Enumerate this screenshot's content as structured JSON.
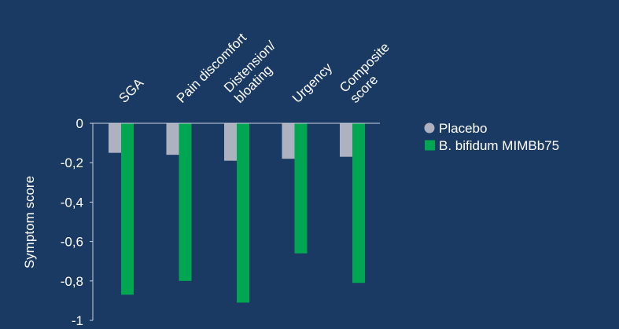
{
  "chart_data": {
    "type": "bar",
    "categories": [
      [
        "SGA"
      ],
      [
        "Pain discomfort"
      ],
      [
        "Distension/",
        "bloating"
      ],
      [
        "Urgency"
      ],
      [
        "Composite",
        "score"
      ]
    ],
    "series": [
      {
        "name": "Placebo",
        "values": [
          -0.15,
          -0.16,
          -0.19,
          -0.18,
          -0.17
        ],
        "color": "#aeb1bf"
      },
      {
        "name": "B. bifidum MIMBb75",
        "values": [
          -0.87,
          -0.8,
          -0.91,
          -0.66,
          -0.81
        ],
        "color": "#00a651"
      }
    ],
    "title": "",
    "xlabel": "",
    "ylabel": "Symptom score",
    "ylim": [
      -1,
      0
    ],
    "yticks": [
      "0",
      "-0,2",
      "-0,4",
      "-0,6",
      "-0,8",
      "-1"
    ],
    "legend_position": "right",
    "grid": false
  },
  "colors": {
    "background": "#1b3a63",
    "axis": "#c9d1df",
    "text": "#ffffff"
  }
}
